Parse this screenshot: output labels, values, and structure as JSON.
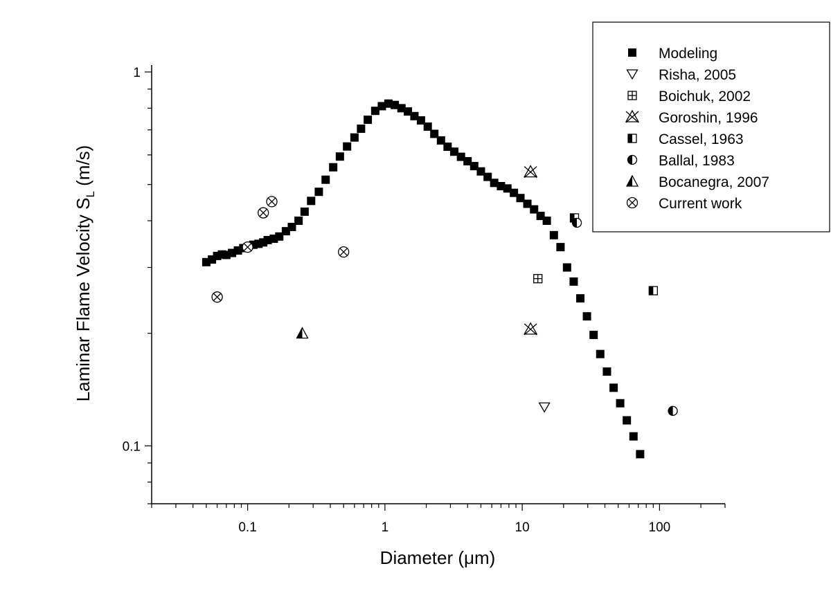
{
  "chart_data": {
    "type": "scatter",
    "title": "",
    "xlabel": "Diameter (μm)",
    "ylabel_main": "Laminar Flame Velocity S",
    "ylabel_sub": "L",
    "ylabel_tail": " (m/s)",
    "x_scale": "log",
    "y_scale": "log",
    "xlim": [
      0.02,
      300
    ],
    "ylim": [
      0.07,
      1
    ],
    "x_ticks": [
      {
        "value": 0.1,
        "label": "0.1"
      },
      {
        "value": 1,
        "label": "1"
      },
      {
        "value": 10,
        "label": "10"
      },
      {
        "value": 100,
        "label": "100"
      }
    ],
    "y_ticks": [
      {
        "value": 0.1,
        "label": "0.1"
      },
      {
        "value": 1,
        "label": "1"
      }
    ],
    "grid": false,
    "legend_position": "top-right",
    "series": [
      {
        "name": "Modeling",
        "marker": "filled-square",
        "x": [
          0.05,
          0.055,
          0.06,
          0.065,
          0.07,
          0.077,
          0.085,
          0.093,
          0.1,
          0.11,
          0.12,
          0.13,
          0.14,
          0.155,
          0.17,
          0.19,
          0.21,
          0.235,
          0.26,
          0.29,
          0.33,
          0.37,
          0.42,
          0.47,
          0.53,
          0.6,
          0.67,
          0.75,
          0.85,
          0.95,
          1.06,
          1.18,
          1.32,
          1.47,
          1.64,
          1.83,
          2.05,
          2.29,
          2.56,
          2.86,
          3.2,
          3.58,
          4.0,
          4.47,
          5.0,
          5.6,
          6.25,
          7.0,
          7.8,
          8.7,
          9.7,
          10.9,
          12.2,
          13.6,
          15.1,
          17.0,
          19.0,
          21.2,
          23.7,
          26.5,
          29.6,
          33.1,
          37.0,
          41.4,
          46.3,
          51.7,
          57.8,
          64.6,
          72.2
        ],
        "y": [
          0.31,
          0.315,
          0.322,
          0.325,
          0.324,
          0.328,
          0.333,
          0.338,
          0.34,
          0.345,
          0.347,
          0.35,
          0.355,
          0.358,
          0.363,
          0.375,
          0.385,
          0.4,
          0.423,
          0.452,
          0.478,
          0.515,
          0.556,
          0.594,
          0.632,
          0.668,
          0.705,
          0.745,
          0.787,
          0.81,
          0.823,
          0.816,
          0.8,
          0.784,
          0.762,
          0.742,
          0.714,
          0.683,
          0.656,
          0.631,
          0.612,
          0.593,
          0.577,
          0.56,
          0.542,
          0.524,
          0.505,
          0.495,
          0.488,
          0.475,
          0.46,
          0.444,
          0.429,
          0.412,
          0.4,
          0.366,
          0.34,
          0.3,
          0.275,
          0.248,
          0.222,
          0.198,
          0.176,
          0.158,
          0.143,
          0.13,
          0.117,
          0.106,
          0.095
        ]
      },
      {
        "name": "Risha, 2005",
        "marker": "down-triangle",
        "x": [
          14.5
        ],
        "y": [
          0.127
        ]
      },
      {
        "name": "Boichuk, 2002",
        "marker": "square-plus",
        "x": [
          13
        ],
        "y": [
          0.28
        ]
      },
      {
        "name": "Goroshin, 1996",
        "marker": "triangle-x",
        "x": [
          11.5,
          11.5
        ],
        "y": [
          0.54,
          0.205
        ]
      },
      {
        "name": "Cassel, 1963",
        "marker": "half-filled-square",
        "x": [
          24,
          90
        ],
        "y": [
          0.407,
          0.26
        ]
      },
      {
        "name": "Ballal, 1983",
        "marker": "half-filled-circle",
        "x": [
          25,
          125
        ],
        "y": [
          0.395,
          0.124
        ]
      },
      {
        "name": "Bocanegra, 2007",
        "marker": "half-filled-triangle",
        "x": [
          0.25
        ],
        "y": [
          0.2
        ]
      },
      {
        "name": "Current work",
        "marker": "circle-x",
        "x": [
          0.06,
          0.1,
          0.13,
          0.15,
          0.5
        ],
        "y": [
          0.25,
          0.34,
          0.42,
          0.45,
          0.33
        ]
      }
    ]
  }
}
